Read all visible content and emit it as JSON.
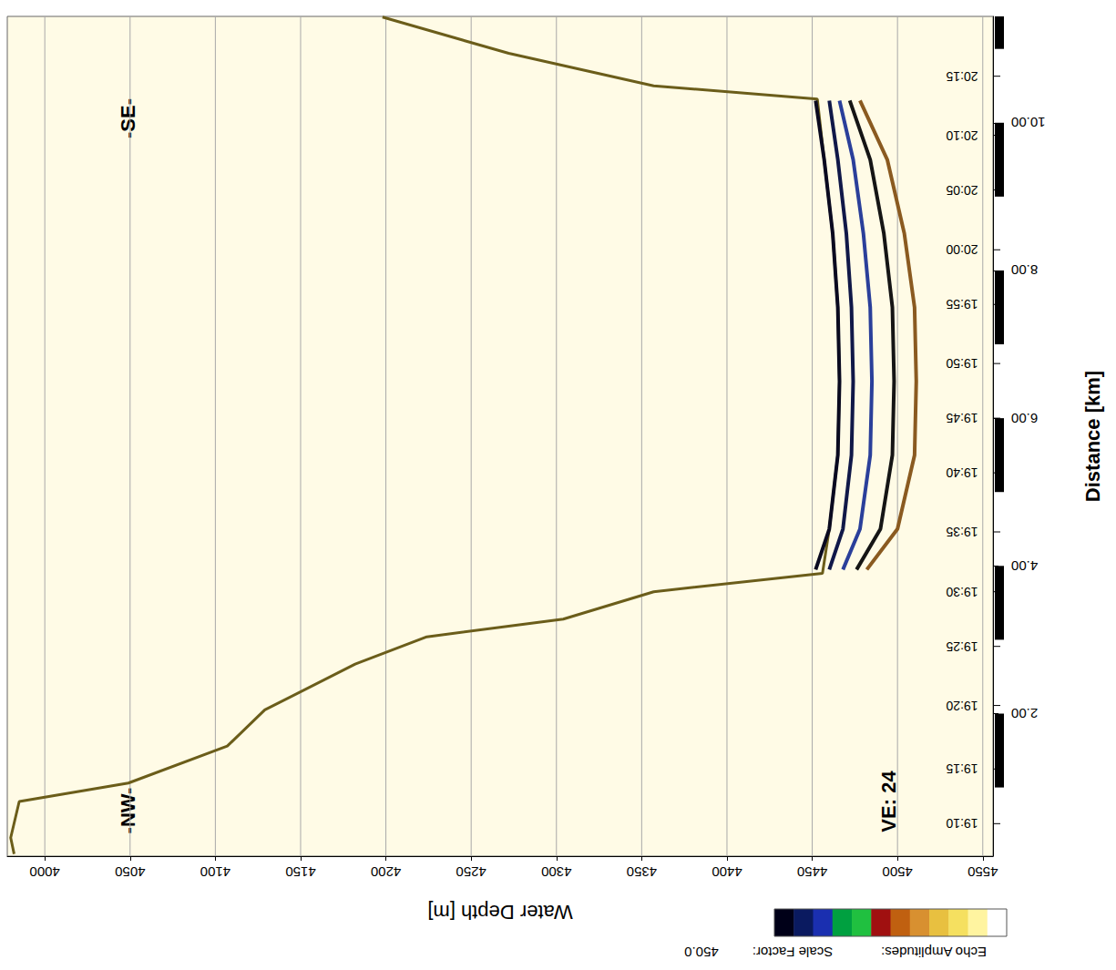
{
  "chart_data": {
    "type": "line",
    "x_label": "Water Depth [m]",
    "y_label": "Distance [km]",
    "xlim": [
      3978,
      4556
    ],
    "xticks": [
      4000,
      4050,
      4100,
      4150,
      4200,
      4250,
      4300,
      4350,
      4400,
      4450,
      4500,
      4550
    ],
    "ylim": [
      0.07,
      11.44
    ],
    "yticks": [
      {
        "value": 2,
        "label": "2.00"
      },
      {
        "value": 4,
        "label": "4.00"
      },
      {
        "value": 6,
        "label": "6.00"
      },
      {
        "value": 8,
        "label": "8.00"
      },
      {
        "value": 10,
        "label": "10.00"
      }
    ],
    "grid": true,
    "series": [
      {
        "color": "#6b5d1a",
        "x": [
          3982,
          3980,
          3985,
          4049,
          4107,
          4129,
          4182,
          4224,
          4304,
          4357,
          4456,
          4460,
          4465,
          4466,
          4465,
          4462,
          4457,
          4453,
          4357,
          4272,
          4198
        ],
        "values": [
          0.1,
          0.32,
          0.81,
          1.06,
          1.56,
          2.05,
          2.67,
          3.04,
          3.28,
          3.65,
          3.9,
          4.5,
          5.5,
          6.5,
          7.5,
          8.5,
          9.5,
          10.32,
          10.5,
          10.94,
          11.43
        ]
      },
      {
        "color": "#0a0a20",
        "x": [
          4452,
          4460,
          4465,
          4466,
          4465,
          4462,
          4457,
          4452
        ],
        "values": [
          3.95,
          4.5,
          5.5,
          6.5,
          7.5,
          8.5,
          9.5,
          10.3
        ]
      },
      {
        "color": "#101848",
        "x": [
          4460,
          4468,
          4473,
          4474,
          4473,
          4470,
          4465,
          4460
        ],
        "values": [
          3.95,
          4.5,
          5.5,
          6.5,
          7.5,
          8.5,
          9.5,
          10.3
        ]
      },
      {
        "color": "#2a3f9a",
        "x": [
          4468,
          4478,
          4484,
          4485,
          4484,
          4480,
          4474,
          4466
        ],
        "values": [
          3.95,
          4.5,
          5.5,
          6.5,
          7.5,
          8.5,
          9.5,
          10.3
        ]
      },
      {
        "color": "#151515",
        "x": [
          4476,
          4490,
          4497,
          4498,
          4497,
          4492,
          4484,
          4472
        ],
        "values": [
          3.95,
          4.5,
          5.5,
          6.5,
          7.5,
          8.5,
          9.5,
          10.3
        ]
      },
      {
        "color": "#8a5a20",
        "x": [
          4482,
          4500,
          4510,
          4511,
          4510,
          4504,
          4494,
          4478
        ],
        "values": [
          3.95,
          4.5,
          5.5,
          6.5,
          7.5,
          8.5,
          9.5,
          10.3
        ]
      }
    ],
    "time_marks": [
      {
        "value": 0.51,
        "label": "19:10"
      },
      {
        "value": 1.25,
        "label": "19:15"
      },
      {
        "value": 2.11,
        "label": "19:20"
      },
      {
        "value": 2.91,
        "label": "19:25"
      },
      {
        "value": 3.65,
        "label": "19:30"
      },
      {
        "value": 4.46,
        "label": "19:35"
      },
      {
        "value": 5.26,
        "label": "19:40"
      },
      {
        "value": 6.0,
        "label": "19:45"
      },
      {
        "value": 6.74,
        "label": "19:50"
      },
      {
        "value": 7.54,
        "label": "19:55"
      },
      {
        "value": 8.28,
        "label": "20:00"
      },
      {
        "value": 9.09,
        "label": "20:05"
      },
      {
        "value": 9.83,
        "label": "20:10"
      },
      {
        "value": 10.63,
        "label": "20:15"
      }
    ],
    "annotations": {
      "start": "-NW-",
      "end": "-SE-",
      "vertical_exaggeration": "VE: 24"
    },
    "colorbar": {
      "title": "Echo Amplitudes:",
      "scale_label": "Scale Factor:",
      "scale_factor": {
        "value": 450,
        "label": "450.0"
      },
      "colors": [
        "#000018",
        "#0a1a60",
        "#1a2fb0",
        "#00a040",
        "#20c040",
        "#a01010",
        "#c06010",
        "#d89030",
        "#e8c040",
        "#f5e060",
        "#fff4a0",
        "#ffffff"
      ]
    }
  }
}
